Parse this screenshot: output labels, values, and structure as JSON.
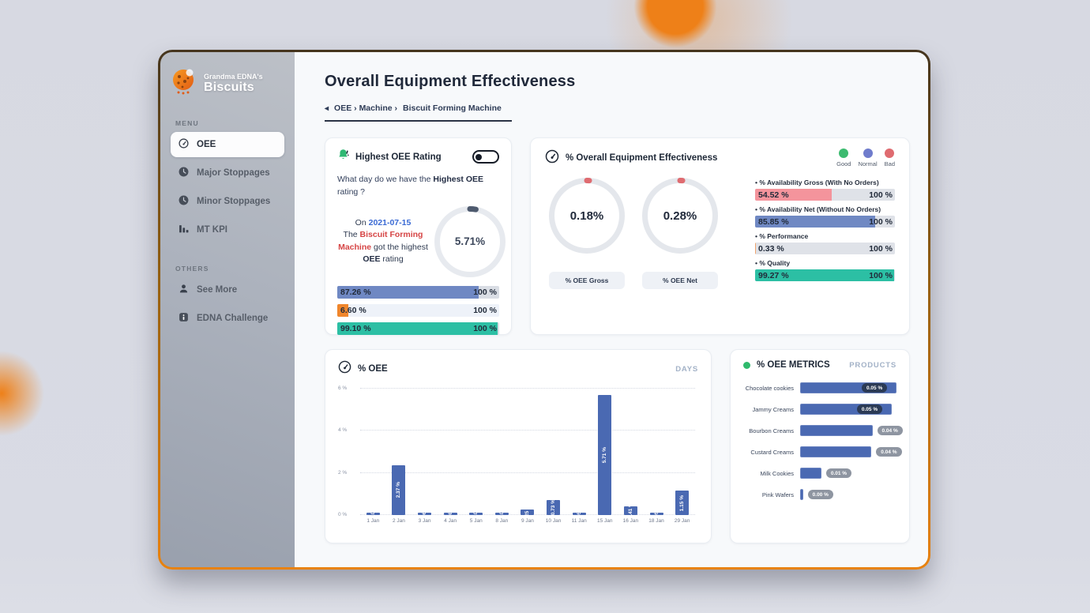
{
  "page": {
    "bg": "#d7d9e2",
    "window_border_accent": "#e8820f"
  },
  "sidebar": {
    "brand": {
      "line1": "Grandma EDNA's",
      "line2": "Biscuits"
    },
    "menu_label": "MENU",
    "menu": [
      {
        "label": "OEE",
        "icon": "gauge-icon",
        "active": true
      },
      {
        "label": "Major Stoppages",
        "icon": "clock-icon",
        "active": false
      },
      {
        "label": "Minor Stoppages",
        "icon": "clock-icon",
        "active": false
      },
      {
        "label": "MT KPI",
        "icon": "bar-chart-icon",
        "active": false
      }
    ],
    "others_label": "OTHERS",
    "others": [
      {
        "label": "See More",
        "icon": "person-icon"
      },
      {
        "label": "EDNA Challenge",
        "icon": "info-icon"
      }
    ]
  },
  "header": {
    "title": "Overall Equipment Effectiveness",
    "breadcrumb": {
      "back": "◂",
      "items": [
        "OEE",
        "Machine"
      ],
      "separator": "›",
      "current": "Biscuit Forming Machine"
    }
  },
  "highest_card": {
    "title": "Highest OEE Rating",
    "question": {
      "pre": "What day do we have the ",
      "bold": "Highest OEE",
      "post": " rating ?"
    },
    "statement": {
      "on": "On ",
      "date": "2021-07-15",
      "the": "The ",
      "machine": "Biscuit Forming Machine",
      "mid": " got the highest ",
      "bold": "OEE",
      "post": " rating"
    },
    "gauge": {
      "value": "5.71%",
      "pct": 5.71,
      "arc_color": "#4e5a6e",
      "ring_color": "#e7eaef"
    },
    "bars": [
      {
        "value": "87.26 %",
        "pct": 87.26,
        "max": "100 %",
        "fill": "#6f88c3",
        "track": "#d9dde4"
      },
      {
        "value": "6.60 %",
        "pct": 6.6,
        "max": "100 %",
        "fill": "#f0862c",
        "track": "#eef2f9"
      },
      {
        "value": "99.10 %",
        "pct": 99.1,
        "max": "100 %",
        "fill": "#2cbfa4",
        "track": "#d9dde4"
      }
    ]
  },
  "overview_card": {
    "title": "% Overall Equipment Effectiveness",
    "legend": [
      {
        "label": "Good",
        "color": "#3dbb70"
      },
      {
        "label": "Normal",
        "color": "#6f7ccc"
      },
      {
        "label": "Bad",
        "color": "#df6b70"
      }
    ],
    "gauges": [
      {
        "value": "0.18%",
        "pct": 0.18,
        "button": "% OEE Gross",
        "arc_color": "#df6b70",
        "ring_color": "#e4e7ec"
      },
      {
        "value": "0.28%",
        "pct": 0.28,
        "button": "% OEE Net",
        "arc_color": "#df6b70",
        "ring_color": "#e4e7ec"
      }
    ],
    "metrics": [
      {
        "label": "% Availability Gross (With No Orders)",
        "value": "54.52 %",
        "pct": 54.52,
        "max": "100 %",
        "fill": "#f4949c",
        "track": "#dfe2e8"
      },
      {
        "label": "% Availability Net (Without No Orders)",
        "value": "85.85 %",
        "pct": 85.85,
        "max": "100 %",
        "fill": "#6f88c3",
        "track": "#dfe2e8"
      },
      {
        "label": "% Performance",
        "value": "0.33 %",
        "pct": 0.33,
        "max": "100 %",
        "fill": "#f0a36c",
        "track": "#dfe2e8"
      },
      {
        "label": "% Quality",
        "value": "99.27 %",
        "pct": 99.27,
        "max": "100 %",
        "fill": "#2cbfa4",
        "track": "#dfe2e8"
      }
    ]
  },
  "days_card": {
    "title": "% OEE",
    "tag": "DAYS"
  },
  "products_card": {
    "title": "% OEE METRICS",
    "tag": "PRODUCTS"
  },
  "chart_data": [
    {
      "type": "bar",
      "title": "% OEE",
      "x_unit": "DAYS",
      "categories": [
        "1 Jan",
        "2 Jan",
        "3 Jan",
        "4 Jan",
        "5 Jan",
        "8 Jan",
        "9 Jan",
        "10 Jan",
        "11 Jan",
        "15 Jan",
        "16 Jan",
        "18 Jan",
        "29 Jan"
      ],
      "values": [
        0.1,
        2.37,
        0.06,
        0.08,
        0.1,
        0.1,
        0.25,
        0.73,
        0.05,
        5.71,
        0.41,
        0.05,
        1.15
      ],
      "value_labels": [
        "0.10 %",
        "2.37 %",
        "0.06 %",
        "0.08 %",
        "0.10 %",
        "0.10 %",
        "0.25 %",
        "0.73 %",
        "0.05 %",
        "5.71 %",
        "0.41 %",
        "0.05 %",
        "1.15 %"
      ],
      "ylim": [
        0,
        6
      ],
      "yticks": [
        "0 %",
        "2 %",
        "4 %",
        "6 %"
      ],
      "grid": "dotted-horizontal",
      "bar_color": "#4a69b2",
      "legend_position": "none"
    },
    {
      "type": "bar-horizontal",
      "title": "% OEE METRICS",
      "x_unit": "PRODUCTS",
      "categories": [
        "Chocolate cookies",
        "Jammy Creams",
        "Bourbon Creams",
        "Custard Creams",
        "Milk Cookies",
        "Pink Wafers"
      ],
      "values": [
        0.05,
        0.05,
        0.04,
        0.04,
        0.01,
        0.0
      ],
      "value_labels": [
        "0.05 %",
        "0.05 %",
        "0.04 %",
        "0.04 %",
        "0.01 %",
        "0.00 %"
      ],
      "bar_pct": [
        100,
        95,
        75,
        74,
        22,
        3
      ],
      "badge_style": [
        "dark",
        "dark",
        "gray",
        "gray",
        "gray",
        "gray"
      ],
      "bar_color": "#4a69b2"
    }
  ]
}
